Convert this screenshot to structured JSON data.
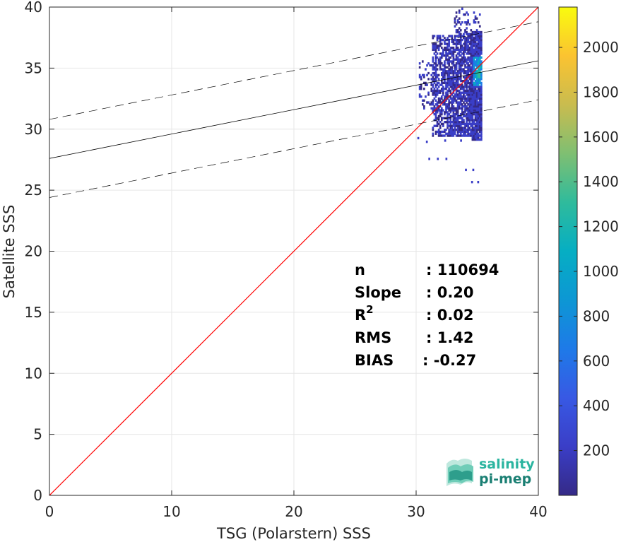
{
  "chart_data": {
    "type": "heatmap",
    "xlabel": "TSG (Polarstern) SSS",
    "ylabel": "Satellite SSS",
    "xlim": [
      0,
      40
    ],
    "ylim": [
      0,
      40
    ],
    "xticks": [
      0,
      10,
      20,
      30,
      40
    ],
    "yticks": [
      0,
      5,
      10,
      15,
      20,
      25,
      30,
      35,
      40
    ],
    "grid": true,
    "reference_line": {
      "type": "identity",
      "color": "#ff0000"
    },
    "regression_line": {
      "intercept": 27.6,
      "slope": 0.2,
      "color": "#000000"
    },
    "error_band_lines": [
      {
        "intercept": 30.8,
        "slope": 0.2,
        "style": "dashed"
      },
      {
        "intercept": 24.4,
        "slope": 0.2,
        "style": "dashed"
      }
    ],
    "density_region": {
      "x_range": [
        30.1,
        35.3
      ],
      "y_range": [
        25.5,
        39.8
      ],
      "peak": {
        "x": 35.0,
        "y": 34.6
      }
    },
    "stats": [
      {
        "label": "n",
        "sup": "",
        "value": ": 110694"
      },
      {
        "label": "Slope",
        "sup": "",
        "value": ": 0.20"
      },
      {
        "label": "R",
        "sup": "2",
        "value": ": 0.02"
      },
      {
        "label": "RMS",
        "sup": "",
        "value": ": 1.42"
      },
      {
        "label": "BIAS",
        "sup": "",
        "value": ": -0.27"
      }
    ],
    "colorbar": {
      "min": 0,
      "max": 2180,
      "ticks": [
        200,
        400,
        600,
        800,
        1000,
        1200,
        1400,
        1600,
        1800,
        2000
      ],
      "colormap": "parula"
    }
  },
  "logo": {
    "line1": "salinity",
    "line2": "pi-mep",
    "color1": "#2bb5a0",
    "color2": "#1a7f73"
  }
}
